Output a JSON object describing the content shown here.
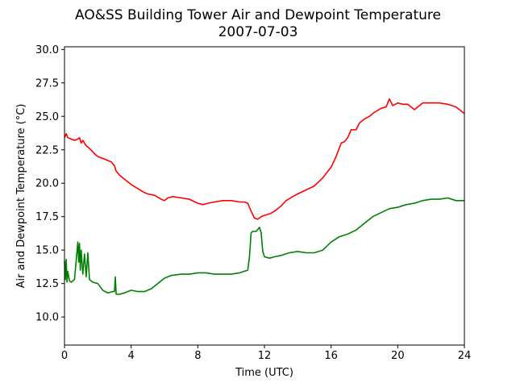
{
  "chart_data": {
    "type": "line",
    "title": "AO&SS Building Tower Air and Dewpoint Temperature",
    "subtitle": "2007-07-03",
    "xlabel": "Time (UTC)",
    "ylabel": "Air and Dewpoint Temperature (°C)",
    "xlim": [
      0,
      24
    ],
    "ylim": [
      7.9,
      30.2
    ],
    "xticks": [
      0,
      4,
      8,
      12,
      16,
      20,
      24
    ],
    "yticks": [
      10.0,
      12.5,
      15.0,
      17.5,
      20.0,
      22.5,
      25.0,
      27.5,
      30.0
    ],
    "xtick_labels": [
      "0",
      "4",
      "8",
      "12",
      "16",
      "20",
      "24"
    ],
    "ytick_labels": [
      "10.0",
      "12.5",
      "15.0",
      "17.5",
      "20.0",
      "22.5",
      "25.0",
      "27.5",
      "30.0"
    ],
    "grid": false,
    "series": [
      {
        "color": "#ff0000",
        "x": [
          0,
          0.1,
          0.2,
          0.4,
          0.6,
          0.8,
          0.9,
          1.0,
          1.1,
          1.3,
          1.5,
          1.8,
          2.0,
          2.4,
          2.8,
          3.0,
          3.1,
          3.3,
          3.6,
          4.0,
          4.4,
          4.8,
          5.0,
          5.4,
          5.8,
          6.0,
          6.2,
          6.5,
          7.0,
          7.5,
          8.0,
          8.3,
          8.6,
          9.0,
          9.5,
          10.0,
          10.5,
          10.8,
          11.0,
          11.2,
          11.4,
          11.6,
          11.8,
          12.0,
          12.3,
          12.6,
          13.0,
          13.3,
          13.7,
          14.0,
          14.5,
          15.0,
          15.5,
          16.0,
          16.3,
          16.6,
          16.8,
          17.0,
          17.2,
          17.5,
          17.7,
          18.0,
          18.3,
          18.6,
          19.0,
          19.3,
          19.5,
          19.7,
          20.0,
          20.3,
          20.6,
          21.0,
          21.5,
          22.0,
          22.5,
          23.0,
          23.5,
          23.8,
          24.0
        ],
        "values": [
          23.4,
          23.7,
          23.4,
          23.3,
          23.2,
          23.3,
          23.4,
          23.0,
          23.2,
          22.8,
          22.6,
          22.2,
          22.0,
          21.8,
          21.6,
          21.3,
          20.9,
          20.6,
          20.3,
          19.9,
          19.6,
          19.3,
          19.2,
          19.1,
          18.8,
          18.7,
          18.9,
          19.0,
          18.9,
          18.8,
          18.5,
          18.4,
          18.5,
          18.6,
          18.7,
          18.7,
          18.6,
          18.6,
          18.5,
          17.9,
          17.4,
          17.3,
          17.5,
          17.6,
          17.7,
          17.9,
          18.3,
          18.7,
          19.0,
          19.2,
          19.5,
          19.8,
          20.4,
          21.2,
          22.0,
          23.0,
          23.1,
          23.4,
          24.0,
          24.0,
          24.5,
          24.8,
          25.0,
          25.3,
          25.6,
          25.7,
          26.3,
          25.8,
          26.0,
          25.9,
          25.9,
          25.5,
          26.0,
          26.0,
          26.0,
          25.9,
          25.7,
          25.4,
          25.2
        ]
      },
      {
        "color": "#008000",
        "x": [
          0,
          0.05,
          0.1,
          0.15,
          0.2,
          0.3,
          0.4,
          0.6,
          0.75,
          0.8,
          0.85,
          0.9,
          0.95,
          1.0,
          1.1,
          1.2,
          1.3,
          1.4,
          1.5,
          1.7,
          2.0,
          2.3,
          2.6,
          2.9,
          3.0,
          3.05,
          3.1,
          3.3,
          3.6,
          4.0,
          4.4,
          4.8,
          5.2,
          5.6,
          6.0,
          6.4,
          7.0,
          7.5,
          8.0,
          8.5,
          9.0,
          9.5,
          10.0,
          10.5,
          11.0,
          11.1,
          11.2,
          11.3,
          11.5,
          11.7,
          11.8,
          11.9,
          12.0,
          12.3,
          12.6,
          13.0,
          13.5,
          14.0,
          14.5,
          15.0,
          15.5,
          16.0,
          16.5,
          17.0,
          17.5,
          18.0,
          18.5,
          19.0,
          19.5,
          20.0,
          20.5,
          21.0,
          21.5,
          22.0,
          22.5,
          23.0,
          23.5,
          24.0
        ],
        "values": [
          14.2,
          12.8,
          14.3,
          12.6,
          13.4,
          12.7,
          12.6,
          12.8,
          14.9,
          15.6,
          14.1,
          15.5,
          13.5,
          15.0,
          13.2,
          14.7,
          13.0,
          14.8,
          12.8,
          12.6,
          12.5,
          12.0,
          11.8,
          11.9,
          11.9,
          13.0,
          11.7,
          11.7,
          11.8,
          12.0,
          11.9,
          11.9,
          12.1,
          12.5,
          12.9,
          13.1,
          13.2,
          13.2,
          13.3,
          13.3,
          13.2,
          13.2,
          13.2,
          13.3,
          13.5,
          14.5,
          16.3,
          16.4,
          16.4,
          16.7,
          16.3,
          14.9,
          14.5,
          14.4,
          14.5,
          14.6,
          14.8,
          14.9,
          14.8,
          14.8,
          15.0,
          15.6,
          16.0,
          16.2,
          16.5,
          17.0,
          17.5,
          17.8,
          18.1,
          18.2,
          18.4,
          18.5,
          18.7,
          18.8,
          18.8,
          18.9,
          18.7,
          18.7
        ]
      }
    ]
  }
}
